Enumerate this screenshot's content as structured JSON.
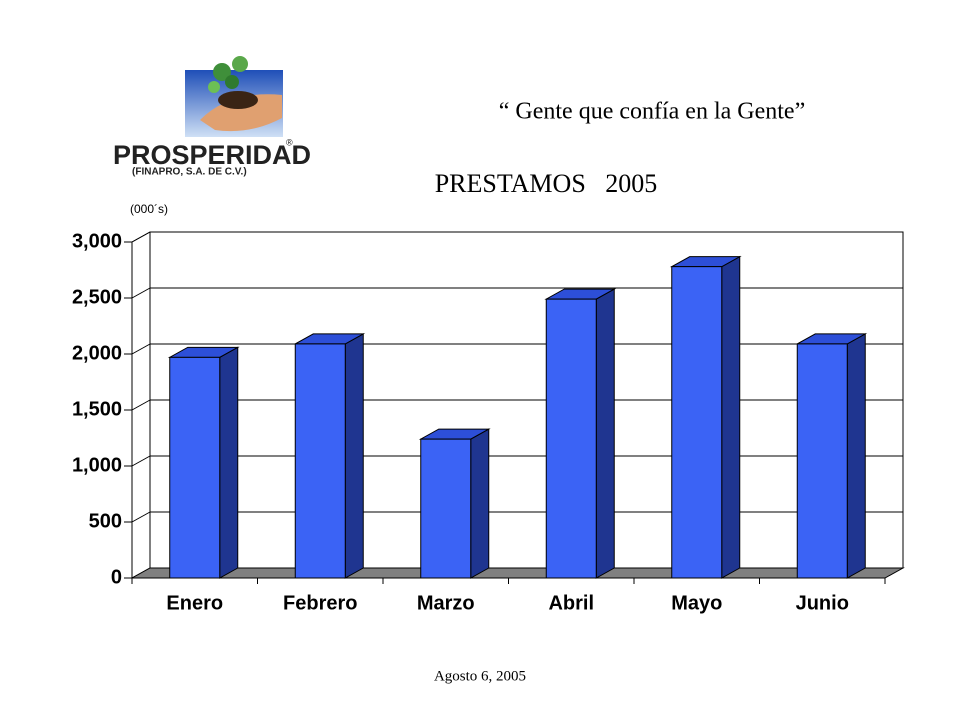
{
  "header": {
    "slogan": "“ Gente que confía en la Gente”",
    "logo": {
      "name": "PROSPERIDAD",
      "mark": "®",
      "subtitle": "(FINAPRO, S.A. DE C.V.)"
    }
  },
  "chart_data": {
    "type": "bar",
    "title": "PRESTAMOS   2005",
    "y_label": "(000´s)",
    "categories": [
      "Enero",
      "Febrero",
      "Marzo",
      "Abril",
      "Mayo",
      "Junio"
    ],
    "values": [
      1970,
      2090,
      1240,
      2490,
      2780,
      2090
    ],
    "color": "#3b63f5",
    "ylim": [
      0,
      3000
    ],
    "yticks": [
      0,
      500,
      {
        "value": 1000,
        "label": "1,000"
      },
      {
        "value": 1500,
        "label": "1,500"
      },
      {
        "value": 2000,
        "label": "2,000"
      },
      {
        "value": 2500,
        "label": "2,500"
      },
      {
        "value": 3000,
        "label": "3,000"
      }
    ],
    "grid": true
  },
  "footer": "Agosto 6, 2005"
}
